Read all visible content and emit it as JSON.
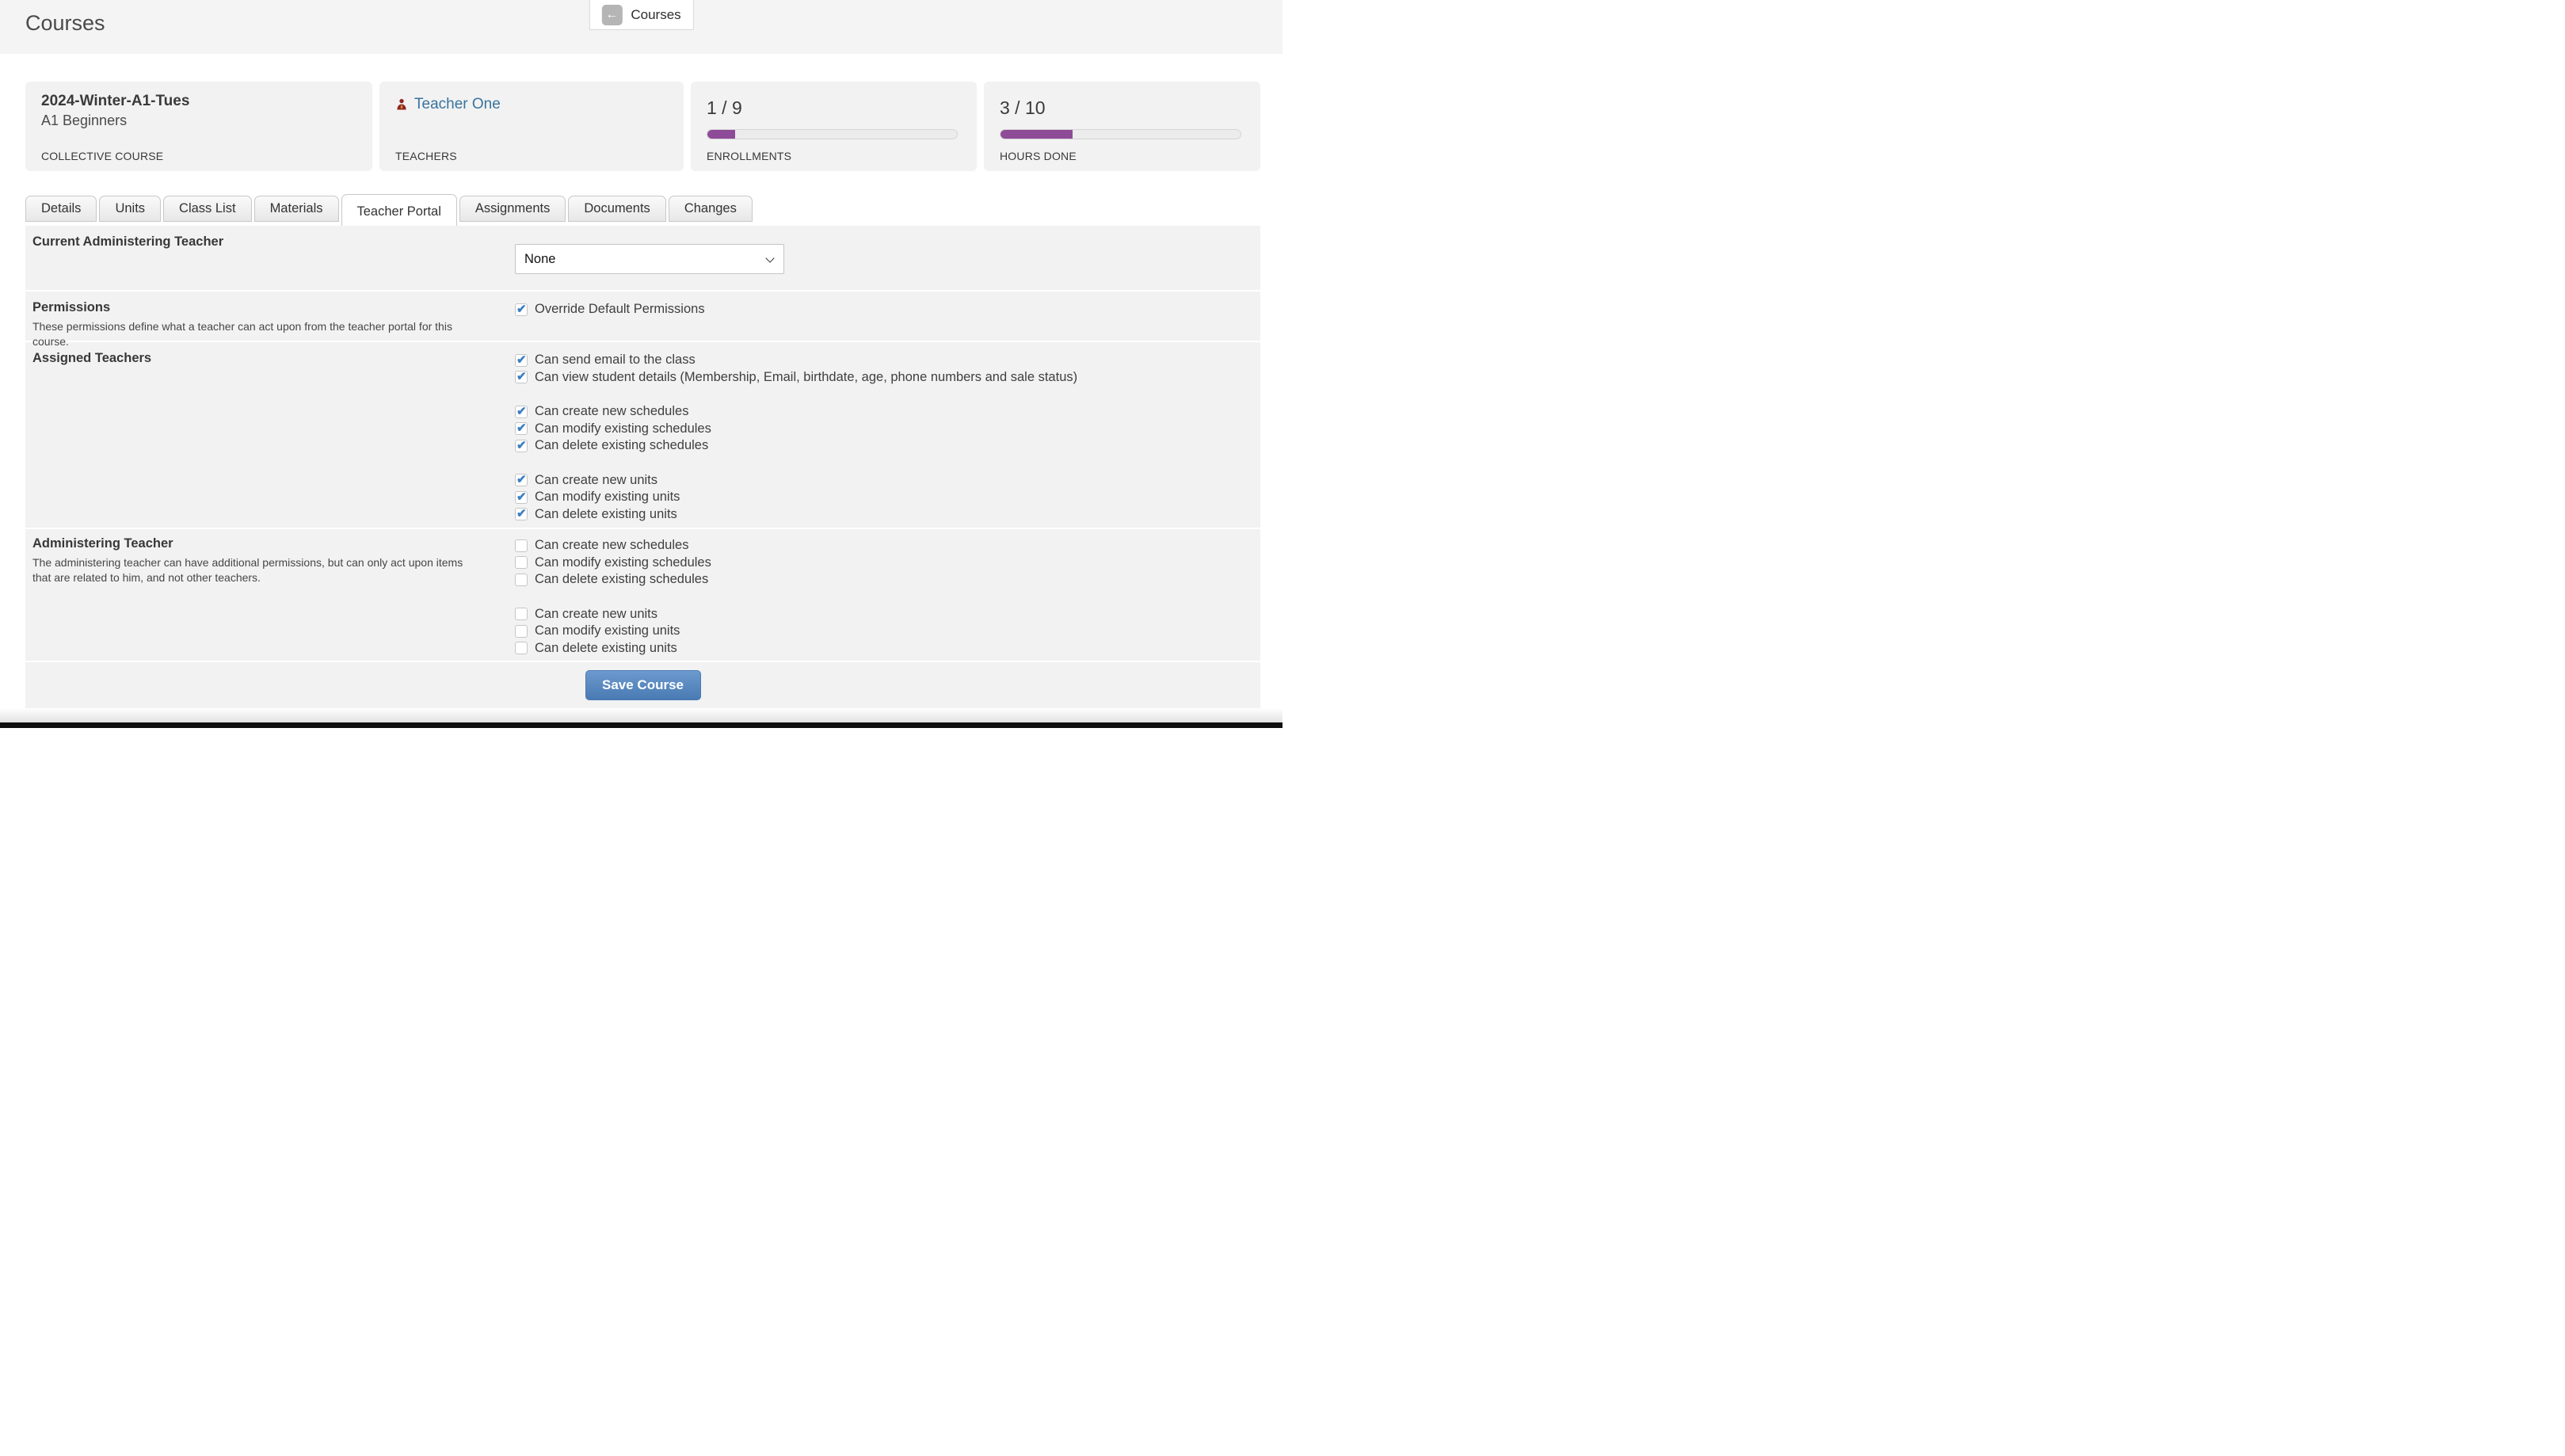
{
  "header": {
    "title": "Courses",
    "back_label": "Courses"
  },
  "cards": {
    "course": {
      "title": "2024-Winter-A1-Tues",
      "subtitle": "A1 Beginners",
      "label": "COLLECTIVE COURSE"
    },
    "teachers": {
      "teacher_name": "Teacher One",
      "label": "TEACHERS"
    },
    "enrollments": {
      "value": "1 / 9",
      "progress_percent": 11.1,
      "label": "ENROLLMENTS"
    },
    "hours": {
      "value": "3 / 10",
      "progress_percent": 30,
      "label": "HOURS DONE"
    }
  },
  "tabs": [
    {
      "label": "Details",
      "active": false
    },
    {
      "label": "Units",
      "active": false
    },
    {
      "label": "Class List",
      "active": false
    },
    {
      "label": "Materials",
      "active": false
    },
    {
      "label": "Teacher Portal",
      "active": true
    },
    {
      "label": "Assignments",
      "active": false
    },
    {
      "label": "Documents",
      "active": false
    },
    {
      "label": "Changes",
      "active": false
    }
  ],
  "form": {
    "current_admin_teacher": {
      "label": "Current Administering Teacher",
      "value": "None"
    },
    "permissions": {
      "title": "Permissions",
      "description": "These permissions define what a teacher can act upon from the teacher portal for this course.",
      "override": {
        "label": "Override Default Permissions",
        "checked": true
      }
    },
    "assigned": {
      "title": "Assigned Teachers",
      "items": [
        {
          "label": "Can send email to the class",
          "checked": true
        },
        {
          "label": "Can view student details (Membership, Email, birthdate, age, phone numbers and sale status)",
          "checked": true
        },
        {
          "label": "Can create new schedules",
          "checked": true
        },
        {
          "label": "Can modify existing schedules",
          "checked": true
        },
        {
          "label": "Can delete existing schedules",
          "checked": true
        },
        {
          "label": "Can create new units",
          "checked": true
        },
        {
          "label": "Can modify existing units",
          "checked": true
        },
        {
          "label": "Can delete existing units",
          "checked": true
        }
      ]
    },
    "admin": {
      "title": "Administering Teacher",
      "description": "The administering teacher can have additional permissions, but can only act upon items that are related to him, and not other teachers.",
      "items": [
        {
          "label": "Can create new schedules",
          "checked": false
        },
        {
          "label": "Can modify existing schedules",
          "checked": false
        },
        {
          "label": "Can delete existing schedules",
          "checked": false
        },
        {
          "label": "Can create new units",
          "checked": false
        },
        {
          "label": "Can modify existing units",
          "checked": false
        },
        {
          "label": "Can delete existing units",
          "checked": false
        }
      ]
    },
    "save_label": "Save Course"
  },
  "colors": {
    "progress_purple": "#8e4b97",
    "link_blue": "#38739f",
    "check_blue": "#3b7dc3",
    "save_button_blue": "#4c7cb5",
    "panel_gray": "#f2f2f2",
    "footer_dark": "#101010"
  }
}
